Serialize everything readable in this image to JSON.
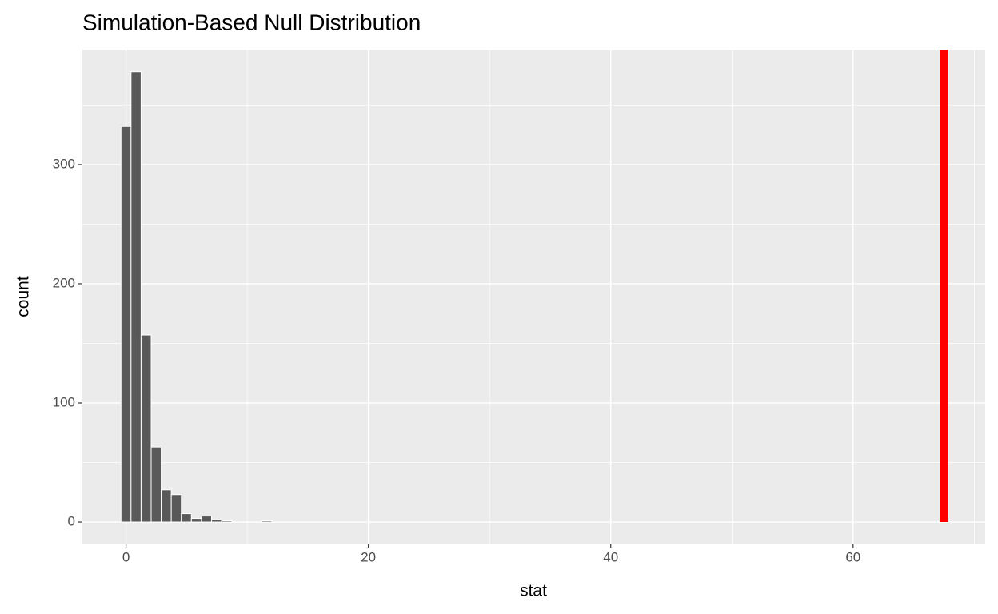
{
  "chart_data": {
    "type": "histogram",
    "title": "Simulation-Based Null Distribution",
    "x_label": "stat",
    "y_label": "count",
    "bins": [
      -0.415,
      0.415,
      1.245,
      2.075,
      2.905,
      3.735,
      4.565,
      5.395,
      6.225,
      7.055,
      7.885,
      8.715,
      9.545,
      10.375,
      11.205,
      12.035
    ],
    "counts": [
      332,
      378,
      157,
      63,
      27,
      23,
      7,
      3,
      5,
      2,
      1,
      0,
      0,
      0,
      1
    ],
    "color": "#595959",
    "edge_color": "#ffffff",
    "obs_stat": 67.5,
    "obs_color": "#ff0000",
    "xlim": [
      -3.6,
      70.9
    ],
    "xticks": [
      0,
      20,
      40,
      60
    ],
    "x_minor_ticks": [
      10,
      30,
      50,
      70
    ],
    "ylim": [
      -18.1,
      396.6
    ],
    "yticks": [
      0,
      100,
      200,
      300
    ],
    "y_minor_ticks": [
      50,
      150,
      250,
      350
    ],
    "grid": true
  }
}
